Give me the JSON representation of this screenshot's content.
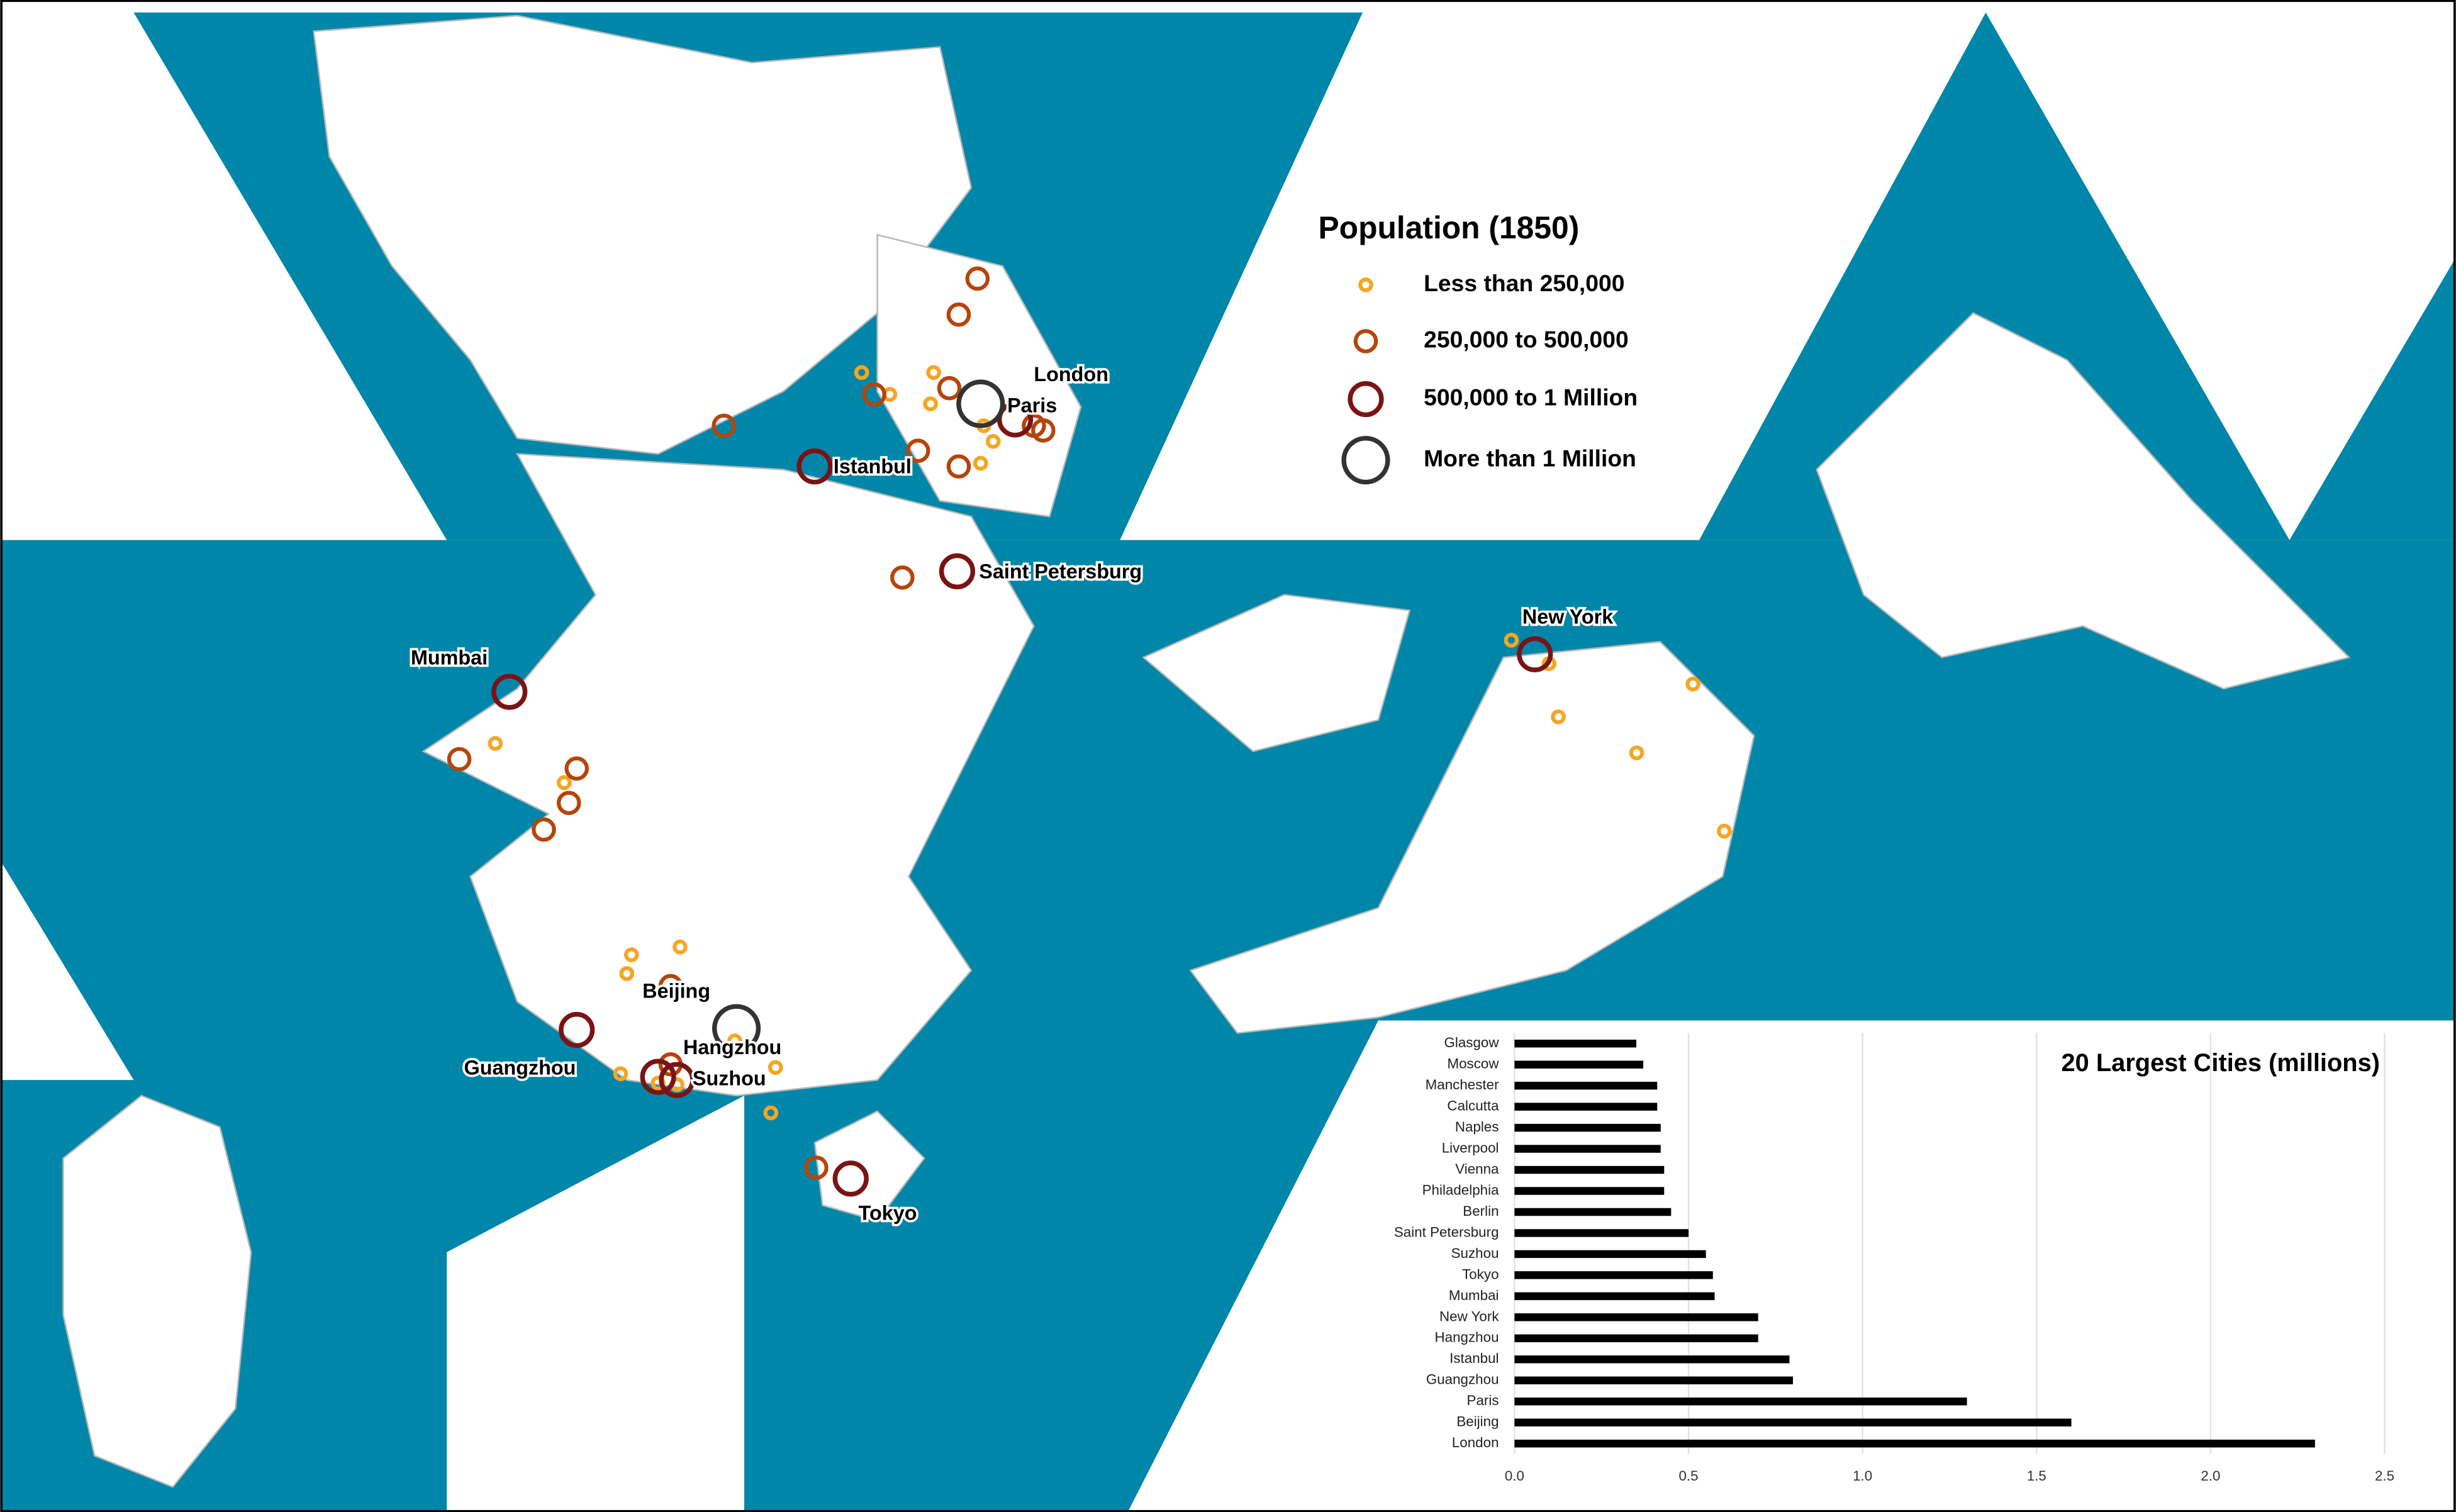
{
  "legend": {
    "title": "Population (1850)",
    "entries": [
      "Less than 250,000",
      "250,000 to 500,000",
      "500,000 to 1 Million",
      "More than 1 Million"
    ]
  },
  "map_labels": [
    "London",
    "Paris",
    "Istanbul",
    "Saint Petersburg",
    "Mumbai",
    "New York",
    "Beijing",
    "Hangzhou",
    "Guangzhou",
    "Suzhou",
    "Tokyo"
  ],
  "chart_data": {
    "type": "bar",
    "orientation": "horizontal",
    "title": "20 Largest Cities (millions)",
    "categories": [
      "Glasgow",
      "Moscow",
      "Manchester",
      "Calcutta",
      "Naples",
      "Liverpool",
      "Vienna",
      "Philadelphia",
      "Berlin",
      "Saint Petersburg",
      "Suzhou",
      "Tokyo",
      "Mumbai",
      "New York",
      "Hangzhou",
      "Istanbul",
      "Guangzhou",
      "Paris",
      "Beijing",
      "London"
    ],
    "values": [
      0.35,
      0.37,
      0.41,
      0.41,
      0.42,
      0.42,
      0.43,
      0.43,
      0.45,
      0.5,
      0.55,
      0.57,
      0.575,
      0.7,
      0.7,
      0.79,
      0.8,
      1.3,
      1.6,
      2.3
    ],
    "color": "#000000",
    "xlim": [
      0,
      2.6
    ],
    "xticks": [
      {
        "value": 0,
        "label": "0.0"
      },
      0.5,
      {
        "value": 1,
        "label": "1.0"
      },
      1.5,
      {
        "value": 2,
        "label": "2.0"
      },
      2.5
    ],
    "grid": true
  }
}
